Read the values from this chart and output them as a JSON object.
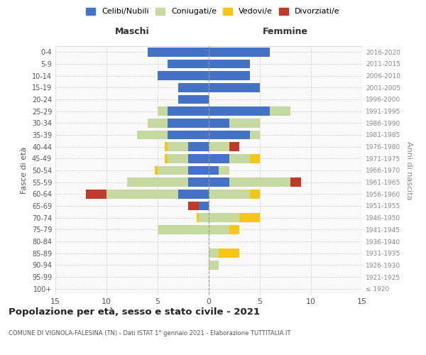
{
  "age_groups": [
    "100+",
    "95-99",
    "90-94",
    "85-89",
    "80-84",
    "75-79",
    "70-74",
    "65-69",
    "60-64",
    "55-59",
    "50-54",
    "45-49",
    "40-44",
    "35-39",
    "30-34",
    "25-29",
    "20-24",
    "15-19",
    "10-14",
    "5-9",
    "0-4"
  ],
  "birth_years": [
    "≤ 1920",
    "1921-1925",
    "1926-1930",
    "1931-1935",
    "1936-1940",
    "1941-1945",
    "1946-1950",
    "1951-1955",
    "1956-1960",
    "1961-1965",
    "1966-1970",
    "1971-1975",
    "1976-1980",
    "1981-1985",
    "1986-1990",
    "1991-1995",
    "1996-2000",
    "2001-2005",
    "2006-2010",
    "2011-2015",
    "2016-2020"
  ],
  "males": {
    "celibi": [
      0,
      0,
      0,
      0,
      0,
      0,
      0,
      1,
      3,
      2,
      2,
      2,
      2,
      4,
      4,
      4,
      3,
      3,
      5,
      4,
      6
    ],
    "coniugati": [
      0,
      0,
      0,
      0,
      0,
      5,
      1,
      0,
      7,
      6,
      3,
      2,
      2,
      3,
      2,
      1,
      0,
      0,
      0,
      0,
      0
    ],
    "vedovi": [
      0,
      0,
      0,
      0,
      0,
      0,
      0.2,
      0,
      0,
      0,
      0.3,
      0.3,
      0.3,
      0,
      0,
      0,
      0,
      0,
      0,
      0,
      0
    ],
    "divorziati": [
      0,
      0,
      0,
      0,
      0,
      0,
      0,
      1,
      2,
      0,
      0,
      0,
      0,
      0,
      0,
      0,
      0,
      0,
      0,
      0,
      0
    ]
  },
  "females": {
    "nubili": [
      0,
      0,
      0,
      0,
      0,
      0,
      0,
      0,
      0,
      2,
      1,
      2,
      0,
      4,
      2,
      6,
      0,
      5,
      4,
      4,
      6
    ],
    "coniugate": [
      0,
      0,
      1,
      1,
      0,
      2,
      3,
      0,
      4,
      6,
      1,
      2,
      2,
      1,
      3,
      2,
      0,
      0,
      0,
      0,
      0
    ],
    "vedove": [
      0,
      0,
      0,
      2,
      0,
      1,
      2,
      0,
      1,
      0,
      0,
      1,
      0,
      0,
      0,
      0,
      0,
      0,
      0,
      0,
      0
    ],
    "divorziate": [
      0,
      0,
      0,
      0,
      0,
      0,
      0,
      0,
      0,
      1,
      0,
      0,
      1,
      0,
      0,
      0,
      0,
      0,
      0,
      0,
      0
    ]
  },
  "color_celibi": "#4472c4",
  "color_coniugati": "#c5d9a0",
  "color_vedovi": "#f5c518",
  "color_divorziati": "#c0392b",
  "xlim": 15,
  "title": "Popolazione per età, sesso e stato civile - 2021",
  "subtitle": "COMUNE DI VIGNOLA-FALESINA (TN) - Dati ISTAT 1° gennaio 2021 - Elaborazione TUTTITALIA.IT",
  "ylabel_left": "Fasce di età",
  "ylabel_right": "Anni di nascita",
  "xlabel_maschi": "Maschi",
  "xlabel_femmine": "Femmine",
  "grid_color": "#cccccc"
}
